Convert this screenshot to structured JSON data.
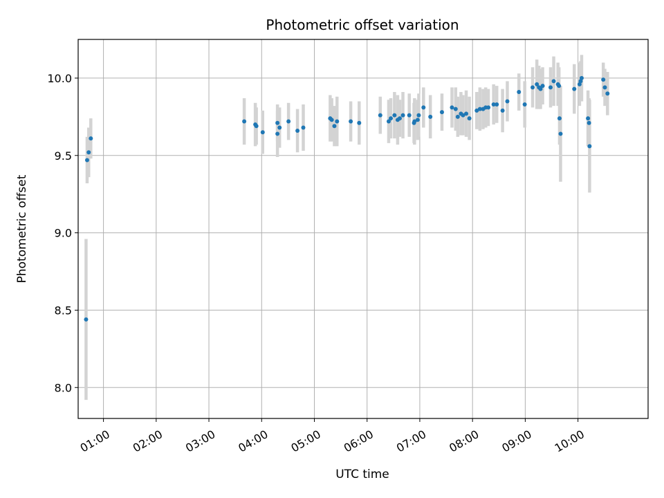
{
  "chart_data": {
    "type": "scatter",
    "title": "Photometric offset variation",
    "xlabel": "UTC time",
    "ylabel": "Photometric offset",
    "grid": true,
    "x_unit": "hours UTC",
    "xlim": [
      0.52,
      11.33
    ],
    "ylim": [
      7.8,
      10.25
    ],
    "x_ticks": [
      1,
      2,
      3,
      4,
      5,
      6,
      7,
      8,
      9,
      10
    ],
    "x_tick_labels": [
      "01:00",
      "02:00",
      "03:00",
      "04:00",
      "05:00",
      "06:00",
      "07:00",
      "08:00",
      "09:00",
      "10:00"
    ],
    "y_ticks": [
      8.0,
      8.5,
      9.0,
      9.5,
      10.0
    ],
    "y_tick_labels": [
      "8.0",
      "8.5",
      "9.0",
      "9.5",
      "10.0"
    ],
    "colors": {
      "marker": "#1f77b4",
      "error_bar": "#d3d3d3",
      "grid": "#b0b0b0"
    },
    "series": [
      {
        "marker": "circle",
        "x": [
          0.67,
          0.69,
          0.72,
          0.76,
          3.67,
          3.88,
          3.9,
          4.02,
          4.3,
          4.3,
          4.34,
          4.51,
          4.68,
          4.79,
          5.3,
          5.33,
          5.38,
          5.43,
          5.69,
          5.85,
          6.25,
          6.41,
          6.45,
          6.52,
          6.58,
          6.62,
          6.68,
          6.8,
          6.89,
          6.9,
          6.96,
          6.98,
          7.07,
          7.2,
          7.42,
          7.61,
          7.68,
          7.72,
          7.78,
          7.82,
          7.88,
          7.94,
          8.08,
          8.14,
          8.2,
          8.25,
          8.3,
          8.4,
          8.46,
          8.57,
          8.66,
          8.88,
          8.99,
          9.14,
          9.22,
          9.26,
          9.29,
          9.33,
          9.48,
          9.54,
          9.62,
          9.64,
          9.65,
          9.67,
          9.93,
          10.03,
          10.05,
          10.07,
          10.19,
          10.21,
          10.22,
          10.48,
          10.51,
          10.56
        ],
        "y": [
          8.44,
          9.47,
          9.52,
          9.61,
          9.72,
          9.7,
          9.69,
          9.65,
          9.71,
          9.64,
          9.68,
          9.72,
          9.66,
          9.68,
          9.74,
          9.73,
          9.69,
          9.72,
          9.72,
          9.71,
          9.76,
          9.72,
          9.74,
          9.76,
          9.73,
          9.74,
          9.76,
          9.76,
          9.71,
          9.72,
          9.73,
          9.76,
          9.81,
          9.75,
          9.78,
          9.81,
          9.8,
          9.75,
          9.77,
          9.76,
          9.77,
          9.74,
          9.79,
          9.8,
          9.8,
          9.81,
          9.81,
          9.83,
          9.83,
          9.79,
          9.85,
          9.91,
          9.83,
          9.94,
          9.96,
          9.94,
          9.93,
          9.95,
          9.94,
          9.98,
          9.96,
          9.95,
          9.74,
          9.64,
          9.93,
          9.96,
          9.98,
          10.0,
          9.74,
          9.71,
          9.56,
          9.99,
          9.94,
          9.9
        ],
        "yerr": [
          0.52,
          0.15,
          0.16,
          0.13,
          0.15,
          0.14,
          0.12,
          0.14,
          0.12,
          0.15,
          0.13,
          0.12,
          0.14,
          0.15,
          0.15,
          0.14,
          0.13,
          0.16,
          0.13,
          0.14,
          0.12,
          0.14,
          0.13,
          0.15,
          0.16,
          0.12,
          0.15,
          0.14,
          0.13,
          0.15,
          0.13,
          0.14,
          0.13,
          0.14,
          0.12,
          0.13,
          0.14,
          0.13,
          0.14,
          0.13,
          0.15,
          0.14,
          0.12,
          0.14,
          0.13,
          0.13,
          0.12,
          0.13,
          0.12,
          0.14,
          0.13,
          0.12,
          0.15,
          0.13,
          0.16,
          0.14,
          0.13,
          0.12,
          0.13,
          0.16,
          0.14,
          0.12,
          0.17,
          0.31,
          0.16,
          0.14,
          0.13,
          0.15,
          0.18,
          0.16,
          0.3,
          0.11,
          0.12,
          0.14
        ]
      }
    ]
  }
}
